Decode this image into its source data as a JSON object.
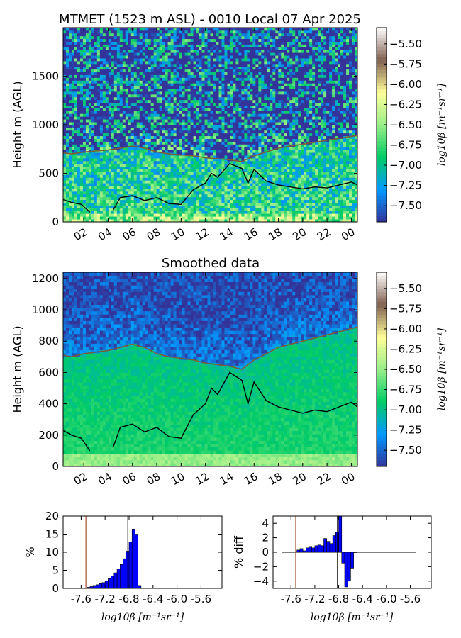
{
  "colors": {
    "colormap": [
      "#333399",
      "#0099ff",
      "#00cc66",
      "#99ee88",
      "#ffff99",
      "#806050",
      "#ffffff"
    ],
    "pbl_upper_line": "#7a5c38",
    "pbl_lower_line": "#000000",
    "histogram_bars": "#0000ff",
    "histogram_marker": "#a0522d"
  },
  "chart_data": [
    {
      "type": "heatmap",
      "title": "MTMET (1523 m ASL) - 0010 Local 07 Apr 2025",
      "ylabel": "Height m (AGL)",
      "xlabel": "",
      "x_tick_labels": [
        "02",
        "04",
        "06",
        "08",
        "10",
        "12",
        "14",
        "16",
        "18",
        "20",
        "22",
        "00"
      ],
      "x_ticks_hours": [
        2,
        4,
        6,
        8,
        10,
        12,
        14,
        16,
        18,
        20,
        22,
        24
      ],
      "xlim_hours": [
        0.3,
        24.5
      ],
      "ylim": [
        0,
        2000
      ],
      "y_ticks": [
        0,
        500,
        1000,
        1500
      ],
      "colorbar": {
        "label": "log10β [m⁻¹sr⁻¹]",
        "range": [
          -7.7,
          -5.3
        ],
        "ticks": [
          -7.5,
          -7.25,
          -7.0,
          -6.75,
          -6.5,
          -6.25,
          -6.0,
          -5.75,
          -5.5
        ],
        "tick_labels": [
          "−7.50",
          "−7.25",
          "−7.00",
          "−6.75",
          "−6.50",
          "−6.25",
          "−6.00",
          "−5.75",
          "−5.50"
        ]
      },
      "series": [
        {
          "x": [
            0.3,
            1,
            2,
            3,
            4,
            5,
            6,
            7,
            8,
            9,
            10,
            11,
            12,
            13,
            14,
            15,
            16,
            17,
            18,
            19,
            20,
            21,
            22,
            23,
            24,
            24.5
          ],
          "y": [
            710,
            700,
            720,
            730,
            740,
            760,
            780,
            760,
            720,
            700,
            690,
            680,
            660,
            650,
            640,
            620,
            680,
            720,
            760,
            780,
            800,
            820,
            840,
            860,
            880,
            890
          ]
        },
        {
          "x": [
            0.3,
            1,
            1.8,
            2.5,
            4.4,
            5,
            6,
            7,
            8,
            9,
            10,
            11,
            12,
            12.5,
            13,
            14,
            15,
            15.5,
            16,
            17,
            18,
            19,
            20,
            21,
            22,
            23,
            24,
            24.5
          ],
          "y": [
            230,
            200,
            180,
            100,
            120,
            250,
            270,
            220,
            250,
            190,
            180,
            330,
            400,
            500,
            460,
            600,
            550,
            400,
            540,
            420,
            380,
            360,
            340,
            360,
            350,
            380,
            410,
            380
          ]
        }
      ]
    },
    {
      "type": "heatmap",
      "title": "Smoothed data",
      "ylabel": "Height m (AGL)",
      "xlabel": "",
      "x_tick_labels": [
        "02",
        "04",
        "06",
        "08",
        "10",
        "12",
        "14",
        "16",
        "18",
        "20",
        "22",
        "00"
      ],
      "x_ticks_hours": [
        2,
        4,
        6,
        8,
        10,
        12,
        14,
        16,
        18,
        20,
        22,
        24
      ],
      "xlim_hours": [
        0.3,
        24.5
      ],
      "ylim": [
        0,
        1240
      ],
      "y_ticks": [
        0,
        200,
        400,
        600,
        800,
        1000,
        1200
      ],
      "colorbar": {
        "label": "log10β [m⁻¹sr⁻¹]",
        "range": [
          -7.7,
          -5.3
        ],
        "ticks": [
          -7.5,
          -7.25,
          -7.0,
          -6.75,
          -6.5,
          -6.25,
          -6.0,
          -5.75,
          -5.5
        ],
        "tick_labels": [
          "−7.50",
          "−7.25",
          "−7.00",
          "−6.75",
          "−6.50",
          "−6.25",
          "−6.00",
          "−5.75",
          "−5.50"
        ]
      },
      "series": [
        {
          "x": [
            0.3,
            1,
            2,
            3,
            4,
            5,
            6,
            7,
            8,
            9,
            10,
            11,
            12,
            13,
            14,
            15,
            16,
            17,
            18,
            19,
            20,
            21,
            22,
            23,
            24,
            24.5
          ],
          "y": [
            710,
            700,
            720,
            730,
            740,
            760,
            780,
            760,
            720,
            700,
            690,
            680,
            660,
            650,
            640,
            620,
            680,
            720,
            760,
            780,
            800,
            820,
            840,
            860,
            880,
            890
          ]
        },
        {
          "x": [
            0.3,
            1,
            1.8,
            2.5,
            4.4,
            5,
            6,
            7,
            8,
            9,
            10,
            11,
            12,
            12.5,
            13,
            14,
            15,
            15.5,
            16,
            17,
            18,
            19,
            20,
            21,
            22,
            23,
            24,
            24.5
          ],
          "y": [
            230,
            200,
            180,
            100,
            120,
            250,
            270,
            220,
            250,
            190,
            180,
            330,
            400,
            500,
            460,
            600,
            550,
            400,
            540,
            420,
            380,
            360,
            340,
            360,
            350,
            380,
            410,
            380
          ]
        }
      ]
    },
    {
      "type": "bar",
      "ylabel": "%",
      "xlabel": "log10β [m⁻¹sr⁻¹]",
      "xlim": [
        -7.9,
        -5.25
      ],
      "ylim": [
        0,
        20
      ],
      "x_ticks": [
        -7.6,
        -7.2,
        -6.8,
        -6.4,
        -6.0,
        -5.6
      ],
      "x_tick_labels": [
        "-7.6",
        "-7.2",
        "-6.8",
        "-6.4",
        "-6.0",
        "-5.6"
      ],
      "y_ticks": [
        0,
        5,
        10,
        15,
        20
      ],
      "bin_width": 0.05,
      "bin_starts": [
        -7.5,
        -7.45,
        -7.4,
        -7.35,
        -7.3,
        -7.25,
        -7.2,
        -7.15,
        -7.1,
        -7.05,
        -7.0,
        -6.95,
        -6.9,
        -6.85,
        -6.8,
        -6.75,
        -6.7,
        -6.65
      ],
      "values": [
        0.3,
        0.5,
        0.8,
        1.0,
        1.3,
        1.6,
        2.1,
        2.7,
        3.4,
        4.3,
        5.4,
        6.6,
        8.2,
        10.3,
        12.8,
        16.4,
        15.0,
        0.8
      ],
      "markers_x": [
        -7.52,
        -6.82
      ]
    },
    {
      "type": "bar",
      "ylabel": "% diff",
      "xlabel": "log10β [m⁻¹sr⁻¹]",
      "xlim": [
        -7.9,
        -5.25
      ],
      "ylim": [
        -5,
        5
      ],
      "x_ticks": [
        -7.6,
        -7.2,
        -6.8,
        -6.4,
        -6.0,
        -5.6
      ],
      "x_tick_labels": [
        "-7.6",
        "-7.2",
        "-6.8",
        "-6.4",
        "-6.0",
        "-5.6"
      ],
      "y_ticks": [
        -4,
        -2,
        0,
        2,
        4
      ],
      "y_tick_labels": [
        "−4",
        "−2",
        "0",
        "2",
        "4"
      ],
      "bin_width": 0.05,
      "bin_starts": [
        -7.5,
        -7.45,
        -7.4,
        -7.35,
        -7.3,
        -7.25,
        -7.2,
        -7.15,
        -7.1,
        -7.05,
        -7.0,
        -6.95,
        -6.9,
        -6.85,
        -6.8,
        -6.75,
        -6.7,
        -6.65,
        -6.6,
        -6.55
      ],
      "values": [
        0.3,
        0.5,
        0.2,
        0.6,
        0.8,
        0.6,
        0.9,
        1.0,
        0.9,
        1.9,
        1.5,
        1.2,
        2.3,
        2.8,
        5.0,
        -1.5,
        -4.8,
        -4.0,
        -2.2,
        0.0
      ],
      "zero_line_x_range": [
        -7.75,
        -5.5
      ],
      "markers_x": [
        -7.52,
        -6.82
      ]
    }
  ]
}
